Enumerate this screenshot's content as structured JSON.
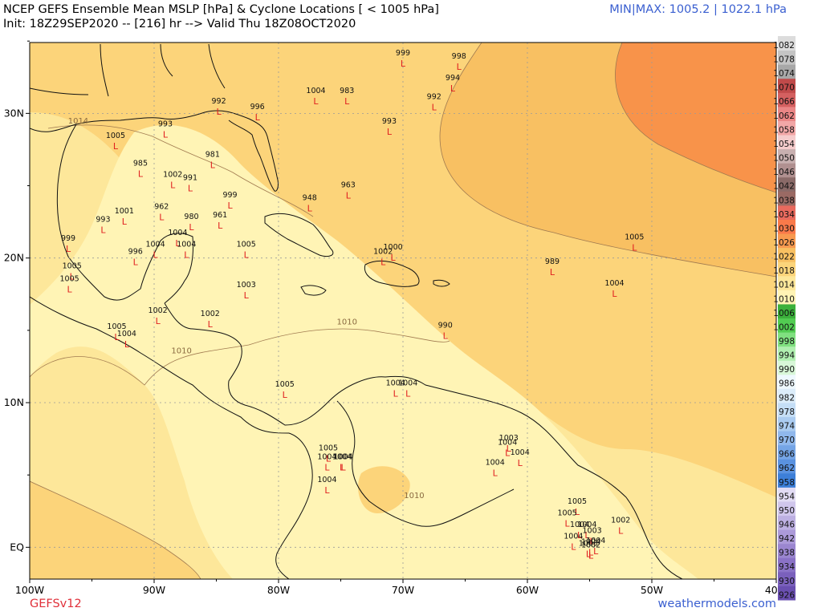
{
  "header": {
    "title": "NCEP GEFS Ensemble Mean MSLP [hPa] & Cyclone Locations [ < 1005 hPa]",
    "subtitle": "Init: 18Z29SEP2020 -- [216] hr --> Valid Thu 18Z08OCT2020",
    "minmax": "MIN|MAX: 1005.2 | 1022.1 hPa"
  },
  "footer": {
    "model": "GEFSv12",
    "site": "weathermodels.com"
  },
  "map": {
    "lon_ticks": [
      {
        "lon": -100,
        "label": "100W"
      },
      {
        "lon": -90,
        "label": "90W"
      },
      {
        "lon": -80,
        "label": "80W"
      },
      {
        "lon": -70,
        "label": "70W"
      },
      {
        "lon": -60,
        "label": "60W"
      },
      {
        "lon": -50,
        "label": "50W"
      },
      {
        "lon": -40,
        "label": "40W"
      }
    ],
    "lat_ticks": [
      {
        "lat": 30,
        "label": "30N"
      },
      {
        "lat": 20,
        "label": "20N"
      },
      {
        "lat": 10,
        "label": "10N"
      },
      {
        "lat": 0,
        "label": "EQ"
      }
    ],
    "isobar_labels": [
      {
        "text": "1014",
        "lon": -96.1,
        "lat": 29.3
      },
      {
        "text": "1010",
        "lon": -74.5,
        "lat": 15.4
      },
      {
        "text": "1010",
        "lon": -87.8,
        "lat": 13.4
      },
      {
        "text": "1010",
        "lon": -69.1,
        "lat": 3.4
      }
    ],
    "lows": [
      {
        "p": "999",
        "lon": -70.0,
        "lat": 33.5
      },
      {
        "p": "998",
        "lon": -65.5,
        "lat": 33.3
      },
      {
        "p": "994",
        "lon": -66.0,
        "lat": 31.8
      },
      {
        "p": "1004",
        "lon": -77.0,
        "lat": 30.9
      },
      {
        "p": "983",
        "lon": -74.5,
        "lat": 30.9
      },
      {
        "p": "992",
        "lon": -67.5,
        "lat": 30.5
      },
      {
        "p": "992",
        "lon": -84.8,
        "lat": 30.2
      },
      {
        "p": "996",
        "lon": -81.7,
        "lat": 29.8
      },
      {
        "p": "993",
        "lon": -71.1,
        "lat": 28.8
      },
      {
        "p": "993",
        "lon": -89.1,
        "lat": 28.6
      },
      {
        "p": "1005",
        "lon": -93.1,
        "lat": 27.8
      },
      {
        "p": "981",
        "lon": -85.3,
        "lat": 26.5
      },
      {
        "p": "985",
        "lon": -91.1,
        "lat": 25.9
      },
      {
        "p": "1002",
        "lon": -88.5,
        "lat": 25.1
      },
      {
        "p": "991",
        "lon": -87.1,
        "lat": 24.9
      },
      {
        "p": "963",
        "lon": -74.4,
        "lat": 24.4
      },
      {
        "p": "999",
        "lon": -83.9,
        "lat": 23.7
      },
      {
        "p": "948",
        "lon": -77.5,
        "lat": 23.5
      },
      {
        "p": "962",
        "lon": -89.4,
        "lat": 22.9
      },
      {
        "p": "1001",
        "lon": -92.4,
        "lat": 22.6
      },
      {
        "p": "961",
        "lon": -84.7,
        "lat": 22.3
      },
      {
        "p": "980",
        "lon": -87.0,
        "lat": 22.2
      },
      {
        "p": "993",
        "lon": -94.1,
        "lat": 22.0
      },
      {
        "p": "1004",
        "lon": -88.1,
        "lat": 21.1
      },
      {
        "p": "999",
        "lon": -96.9,
        "lat": 20.7
      },
      {
        "p": "1005",
        "lon": -51.4,
        "lat": 20.8
      },
      {
        "p": "1004",
        "lon": -89.9,
        "lat": 20.3
      },
      {
        "p": "1004",
        "lon": -87.4,
        "lat": 20.3
      },
      {
        "p": "1005",
        "lon": -82.6,
        "lat": 20.3
      },
      {
        "p": "1000",
        "lon": -70.8,
        "lat": 20.1
      },
      {
        "p": "1002",
        "lon": -71.6,
        "lat": 19.8
      },
      {
        "p": "996",
        "lon": -91.5,
        "lat": 19.8
      },
      {
        "p": "989",
        "lon": -58.0,
        "lat": 19.1
      },
      {
        "p": "1005",
        "lon": -96.6,
        "lat": 18.8
      },
      {
        "p": "1004",
        "lon": -53.0,
        "lat": 17.6
      },
      {
        "p": "1005",
        "lon": -96.8,
        "lat": 17.9
      },
      {
        "p": "1003",
        "lon": -82.6,
        "lat": 17.5
      },
      {
        "p": "1002",
        "lon": -89.7,
        "lat": 15.7
      },
      {
        "p": "1002",
        "lon": -85.5,
        "lat": 15.5
      },
      {
        "p": "990",
        "lon": -66.6,
        "lat": 14.7
      },
      {
        "p": "1005",
        "lon": -93.0,
        "lat": 14.6
      },
      {
        "p": "1004",
        "lon": -92.2,
        "lat": 14.1
      },
      {
        "p": "1004",
        "lon": -70.6,
        "lat": 10.7
      },
      {
        "p": "1004",
        "lon": -69.6,
        "lat": 10.7
      },
      {
        "p": "1005",
        "lon": -79.5,
        "lat": 10.6
      },
      {
        "p": "1003",
        "lon": -61.5,
        "lat": 6.9
      },
      {
        "p": "1004",
        "lon": -61.6,
        "lat": 6.6
      },
      {
        "p": "1005",
        "lon": -76.0,
        "lat": 6.2
      },
      {
        "p": "1004",
        "lon": -60.6,
        "lat": 5.9
      },
      {
        "p": "1004",
        "lon": -76.1,
        "lat": 5.6
      },
      {
        "p": "1004",
        "lon": -74.9,
        "lat": 5.6
      },
      {
        "p": "1004",
        "lon": -74.8,
        "lat": 5.6
      },
      {
        "p": "1004",
        "lon": -62.6,
        "lat": 5.2
      },
      {
        "p": "1004",
        "lon": -76.1,
        "lat": 4.0
      },
      {
        "p": "1005",
        "lon": -56.0,
        "lat": 2.5
      },
      {
        "p": "1005",
        "lon": -56.8,
        "lat": 1.7
      },
      {
        "p": "1002",
        "lon": -52.5,
        "lat": 1.2
      },
      {
        "p": "1004",
        "lon": -55.8,
        "lat": 0.9
      },
      {
        "p": "1004",
        "lon": -55.2,
        "lat": 0.9
      },
      {
        "p": "1003",
        "lon": -54.8,
        "lat": 0.5
      },
      {
        "p": "1004",
        "lon": -56.3,
        "lat": 0.1
      },
      {
        "p": "1004",
        "lon": -54.5,
        "lat": -0.2
      },
      {
        "p": "1004",
        "lon": -54.9,
        "lat": -0.3
      },
      {
        "p": "1003",
        "lon": -55.1,
        "lat": -0.4
      },
      {
        "p": "1002",
        "lon": -54.9,
        "lat": -0.5
      }
    ]
  },
  "colorbar": {
    "levels": [
      "926",
      "930",
      "934",
      "938",
      "942",
      "946",
      "950",
      "954",
      "958",
      "962",
      "966",
      "970",
      "974",
      "978",
      "982",
      "986",
      "990",
      "994",
      "998",
      "1002",
      "1006",
      "1010",
      "1014",
      "1018",
      "1022",
      "1026",
      "1030",
      "1034",
      "1038",
      "1042",
      "1046",
      "1050",
      "1054",
      "1058",
      "1062",
      "1066",
      "1070",
      "1074",
      "1078",
      "1082"
    ],
    "colors": [
      "#6a4fb0",
      "#7a60bc",
      "#8a72c6",
      "#9b86d0",
      "#ac9ad9",
      "#bdb0e2",
      "#d0c6ec",
      "#e2dcf4",
      "#3d7fd8",
      "#5a92e0",
      "#75a5e6",
      "#90b8ec",
      "#abccf1",
      "#c5def6",
      "#dcedfa",
      "#eef8fd",
      "#d8f7d8",
      "#b0efb0",
      "#80e080",
      "#52cc52",
      "#3bb03b",
      "#fff4b5",
      "#fde79a",
      "#fcd47a",
      "#f8c062",
      "#f89a50",
      "#fa7a4a",
      "#e86a5e",
      "#9a6a64",
      "#8a6a68",
      "#b09090",
      "#c8b0b0",
      "#f5cccc",
      "#f2a7a7",
      "#ea8686",
      "#d46060",
      "#c04a4a",
      "#a8a8a8",
      "#c4c4c4",
      "#dcdcdc"
    ],
    "shown_labels": [
      "926",
      "930",
      "934",
      "938",
      "942",
      "946",
      "950",
      "954",
      "958",
      "962",
      "966",
      "970",
      "974",
      "978",
      "982",
      "986",
      "990",
      "994",
      "998",
      "1002",
      "1006",
      "1010",
      "1014",
      "1018",
      "1022",
      "1026",
      "1030",
      "1034",
      "1038",
      "1042",
      "1046",
      "1050",
      "1054",
      "1058",
      "1062",
      "1066",
      "1070",
      "1074",
      "1078",
      "1082"
    ]
  }
}
